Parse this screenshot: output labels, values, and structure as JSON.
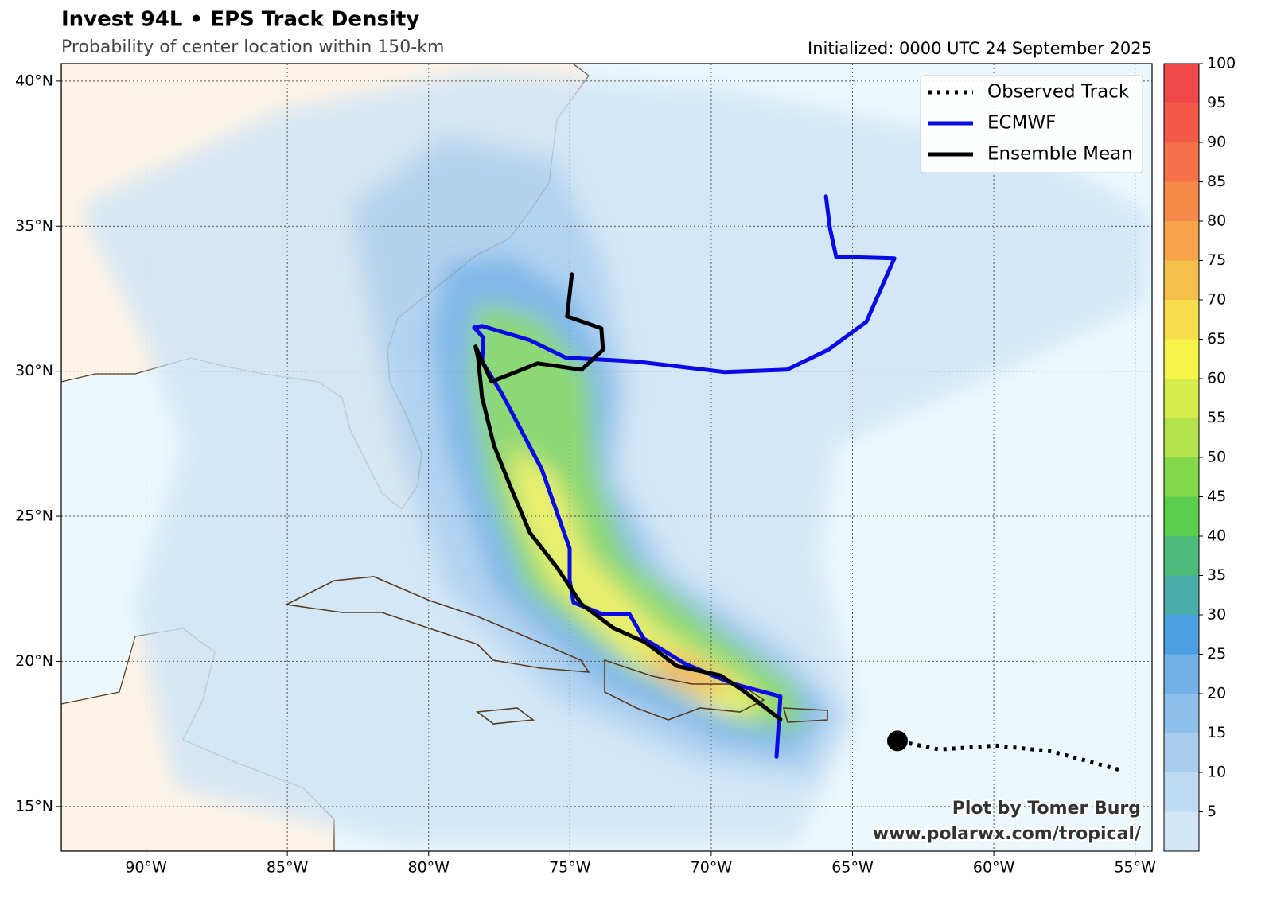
{
  "map": {
    "title": "Invest 94L • EPS Track Density",
    "subtitle": "Probability of center location within 150-km",
    "initialized": "Initialized: 0000 UTC 24 September 2025",
    "lonlim": [
      -93,
      -54.4
    ],
    "latlim": [
      13.46,
      40.6
    ],
    "lonticks": [
      {
        "value": -90,
        "label": "90°W"
      },
      {
        "value": -85,
        "label": "85°W"
      },
      {
        "value": -80,
        "label": "80°W"
      },
      {
        "value": -75,
        "label": "75°W"
      },
      {
        "value": -70,
        "label": "70°W"
      },
      {
        "value": -65,
        "label": "65°W"
      },
      {
        "value": -60,
        "label": "60°W"
      },
      {
        "value": -55,
        "label": "55°W"
      }
    ],
    "latticks": [
      {
        "value": 15,
        "label": "15°N"
      },
      {
        "value": 20,
        "label": "20°N"
      },
      {
        "value": 25,
        "label": "25°N"
      },
      {
        "value": 30,
        "label": "30°N"
      },
      {
        "value": 35,
        "label": "35°N"
      },
      {
        "value": 40,
        "label": "40°N"
      }
    ],
    "grid": true,
    "tracks": [
      {
        "name": "Observed Track",
        "color": "#000000",
        "style": "dotted",
        "lon": [
          -55.58,
          -57.97,
          -59.94,
          -61.92,
          -63.41
        ],
        "lat": [
          16.27,
          16.9,
          17.1,
          16.96,
          17.26
        ]
      },
      {
        "name": "ECMWF",
        "color": "#0a0ae6",
        "style": "solid",
        "lon": [
          -67.69,
          -67.55,
          -69.24,
          -70.93,
          -72.39,
          -72.9,
          -73.89,
          -74.87,
          -75.01,
          -75.01,
          -76.0,
          -77.41,
          -78.11,
          -78.06,
          -78.39,
          -78.11,
          -76.42,
          -75.15,
          -72.62,
          -69.52,
          -67.32,
          -65.86,
          -64.51,
          -63.52,
          -65.58,
          -65.8,
          -65.94
        ],
        "lat": [
          16.71,
          18.79,
          19.23,
          19.92,
          20.79,
          21.64,
          21.64,
          22.03,
          22.79,
          23.89,
          26.63,
          29.23,
          30.33,
          31.15,
          31.51,
          31.56,
          31.07,
          30.47,
          30.33,
          29.97,
          30.05,
          30.74,
          31.7,
          33.89,
          33.95,
          34.93,
          36.03
        ]
      },
      {
        "name": "Ensemble Mean",
        "color": "#000000",
        "style": "solid",
        "lon": [
          -67.55,
          -68.82,
          -69.66,
          -71.21,
          -72.34,
          -73.46,
          -74.59,
          -75.44,
          -76.42,
          -77.13,
          -77.69,
          -78.11,
          -78.25,
          -78.34,
          -77.77,
          -76.14,
          -74.59,
          -73.83,
          -73.89,
          -75.1,
          -74.93
        ],
        "lat": [
          18.0,
          18.96,
          19.51,
          19.84,
          20.66,
          21.15,
          21.97,
          23.21,
          24.44,
          26.08,
          27.45,
          29.1,
          30.47,
          30.85,
          29.64,
          30.27,
          30.05,
          30.74,
          31.48,
          31.89,
          33.34
        ]
      }
    ],
    "legend": "upper right",
    "colorbar": {
      "lim": [
        0,
        100
      ],
      "ticks": [
        5,
        10,
        15,
        20,
        25,
        30,
        35,
        40,
        45,
        50,
        55,
        60,
        65,
        70,
        75,
        80,
        85,
        90,
        95,
        100
      ],
      "colors": [
        "#d3e6f7",
        "#bedaf3",
        "#a8cdef",
        "#8fc0ec",
        "#74b0e8",
        "#4c9fe0",
        "#4aaca8",
        "#4fbb7a",
        "#5ccd4c",
        "#84d94a",
        "#b3e34a",
        "#d6ec4b",
        "#f5f447",
        "#f5dd4c",
        "#f4c04a",
        "#f5a44a",
        "#f5894a",
        "#f5714a",
        "#f45a4a",
        "#f04848"
      ]
    },
    "credit": [
      "Plot by Tomer Burg",
      "www.polarwx.com/tropical/"
    ]
  }
}
